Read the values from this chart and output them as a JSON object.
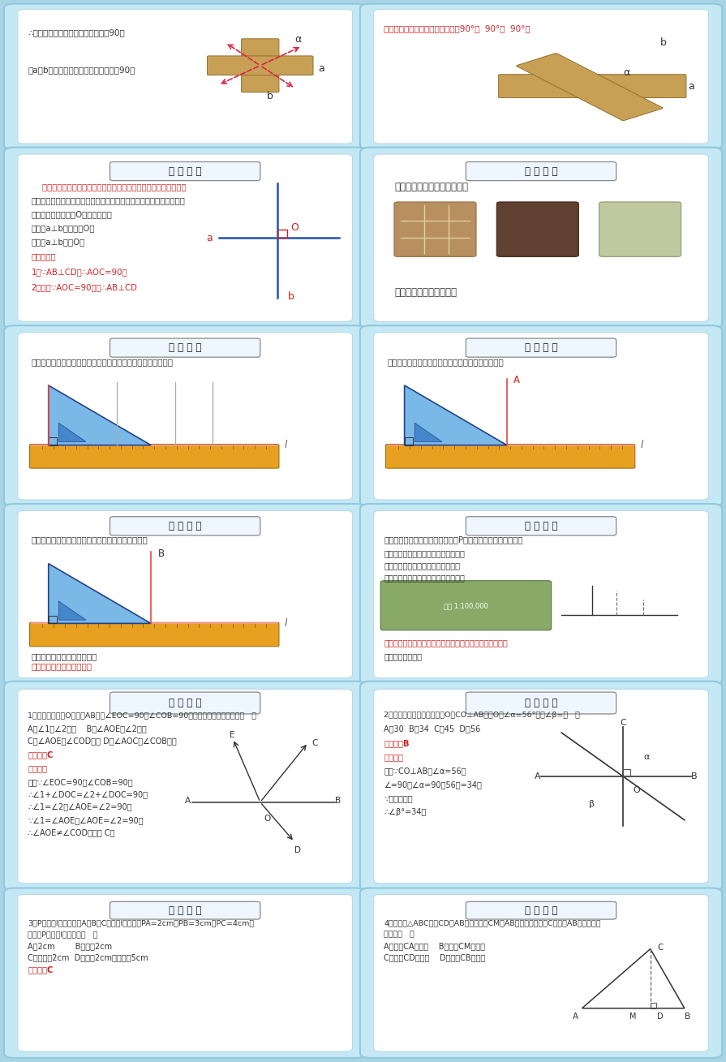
{
  "bg_color": "#a8d4e6",
  "panel_outer_bg": "#c8e8f4",
  "panel_inner_bg": "#ffffff",
  "title_badge_bg": "#f0f8ff",
  "red": "#cc2222",
  "blue": "#2255aa",
  "dark": "#222222",
  "orange": "#e8a020",
  "blue_tri": "#7ab8e8",
  "wood": "#c8a060"
}
